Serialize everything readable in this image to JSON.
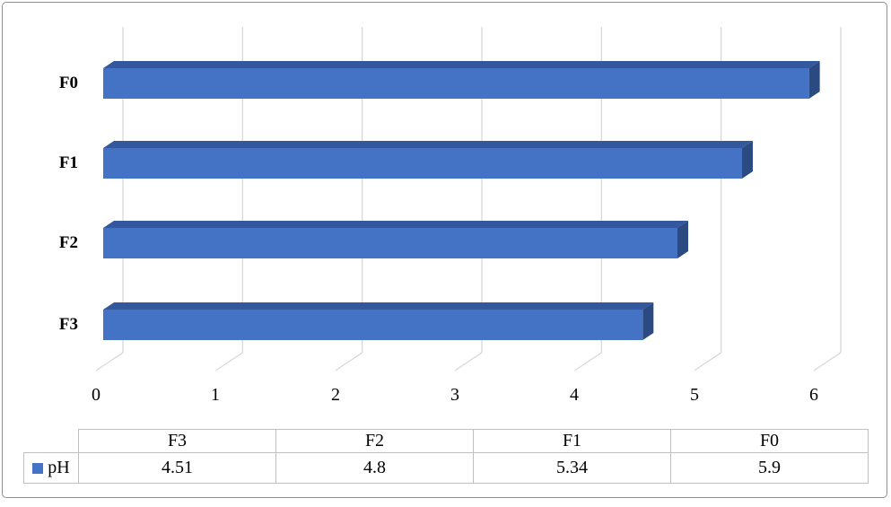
{
  "chart_data": {
    "type": "bar",
    "orientation": "horizontal",
    "effect": "3d",
    "title": "",
    "categories": [
      "F0",
      "F1",
      "F2",
      "F3"
    ],
    "series": [
      {
        "name": "pH",
        "values": [
          5.9,
          5.34,
          4.8,
          4.51
        ]
      }
    ],
    "x_ticks": [
      "0",
      "1",
      "2",
      "3",
      "4",
      "5",
      "6"
    ],
    "xlim": [
      0,
      6
    ],
    "grid": true,
    "legend_position": "bottom-table",
    "colors": {
      "bar_front": "#4472c4",
      "bar_top": "#33589e",
      "bar_side": "#2b4a82",
      "gridline": "#d9d9d9"
    }
  },
  "data_table": {
    "columns": [
      "F3",
      "F2",
      "F1",
      "F0"
    ],
    "rows": [
      {
        "legend": "pH",
        "values": [
          "4.51",
          "4.8",
          "5.34",
          "5.9"
        ]
      }
    ]
  }
}
